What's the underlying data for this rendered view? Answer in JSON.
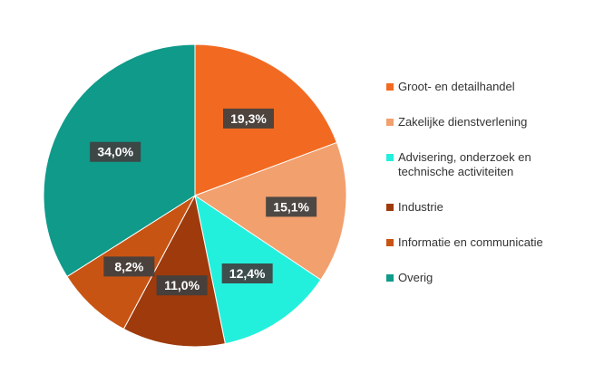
{
  "chart_data": {
    "type": "pie",
    "categories": [
      "Groot- en detailhandel",
      "Zakelijke dienstverlening",
      "Advisering, onderzoek en technische activiteiten",
      "Industrie",
      "Informatie en communicatie",
      "Overig"
    ],
    "values": [
      19.3,
      15.1,
      12.4,
      11.0,
      8.2,
      34.0
    ],
    "labels": [
      "19,3%",
      "15,1%",
      "12,4%",
      "11,0%",
      "8,2%",
      "34,0%"
    ],
    "colors": [
      "#f26a21",
      "#f2a06e",
      "#22f0dc",
      "#9e3a0c",
      "#c85414",
      "#0f9a8a"
    ],
    "legend_position": "right",
    "start_angle": "12 o'clock",
    "direction": "clockwise"
  }
}
